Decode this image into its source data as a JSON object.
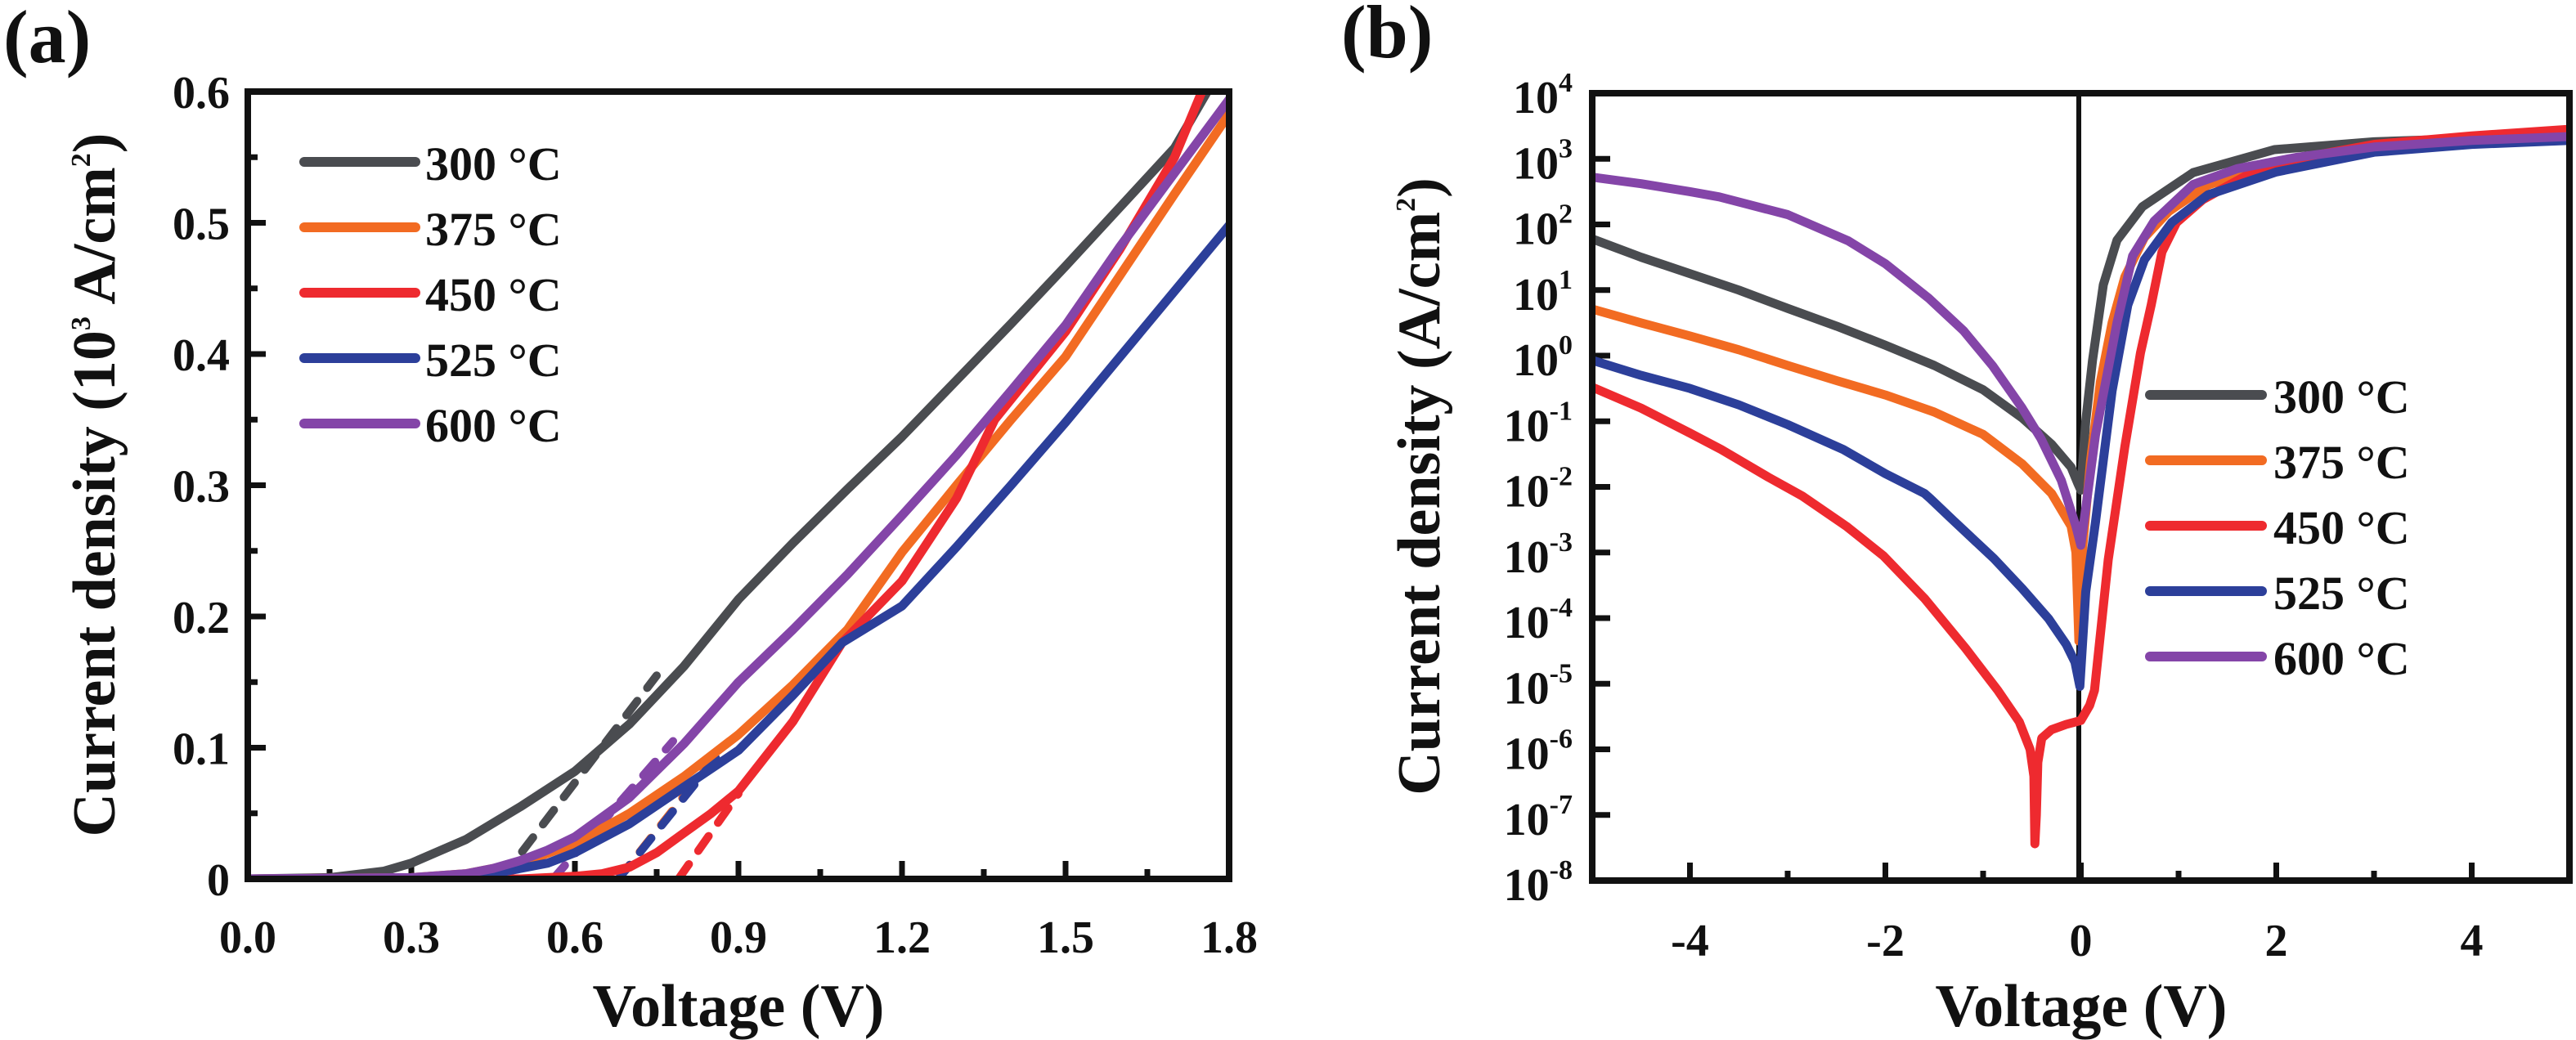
{
  "figure": {
    "panels": [
      "(a)",
      "(b)"
    ]
  },
  "colors": {
    "300": "#4a4c50",
    "375": "#f26b22",
    "450": "#ee2a2f",
    "525": "#2c3f9a",
    "600": "#8445a8",
    "axis": "#111111"
  },
  "chart_data": [
    {
      "panel": "(a)",
      "type": "line",
      "title": "",
      "xlabel": "Voltage (V)",
      "ylabel": "Current density (10^3 A/cm^2)",
      "ylabel_parts": {
        "main": "Current density (10",
        "sup1": "3",
        "mid": " A/cm",
        "sup2": "2",
        "end": ")"
      },
      "xlim": [
        0,
        1.8
      ],
      "ylim": [
        0,
        0.6
      ],
      "xscale": "linear",
      "yscale": "linear",
      "xticks": [
        0.0,
        0.3,
        0.6,
        0.9,
        1.2,
        1.5,
        1.8
      ],
      "xtick_labels": [
        "0.0",
        "0.3",
        "0.6",
        "0.9",
        "1.2",
        "1.5",
        "1.8"
      ],
      "yticks": [
        0,
        0.1,
        0.2,
        0.3,
        0.4,
        0.5,
        0.6
      ],
      "ytick_labels": [
        "0",
        "0.1",
        "0.2",
        "0.3",
        "0.4",
        "0.5",
        "0.6"
      ],
      "grid": false,
      "legend": {
        "position": "top-left",
        "entries": [
          "300 °C",
          "375 °C",
          "450 °C",
          "525 °C",
          "600 °C"
        ]
      },
      "series": [
        {
          "name": "300 °C",
          "key": "300",
          "style": "solid",
          "x": [
            0,
            0.15,
            0.25,
            0.3,
            0.4,
            0.5,
            0.6,
            0.7,
            0.8,
            0.9,
            1.0,
            1.1,
            1.2,
            1.3,
            1.4,
            1.5,
            1.6,
            1.7,
            1.76
          ],
          "y": [
            0,
            0.001,
            0.006,
            0.012,
            0.03,
            0.055,
            0.082,
            0.118,
            0.162,
            0.213,
            0.256,
            0.297,
            0.337,
            0.38,
            0.423,
            0.467,
            0.512,
            0.557,
            0.6
          ]
        },
        {
          "name": "375 °C",
          "key": "375",
          "style": "solid",
          "x": [
            0,
            0.3,
            0.4,
            0.5,
            0.6,
            0.7,
            0.8,
            0.9,
            1.0,
            1.1,
            1.2,
            1.3,
            1.4,
            1.5,
            1.6,
            1.7,
            1.8
          ],
          "y": [
            0,
            0.001,
            0.004,
            0.012,
            0.027,
            0.05,
            0.078,
            0.11,
            0.148,
            0.19,
            0.249,
            0.3,
            0.35,
            0.398,
            0.46,
            0.522,
            0.583
          ]
        },
        {
          "name": "450 °C",
          "key": "450",
          "style": "solid",
          "x": [
            0,
            0.5,
            0.6,
            0.65,
            0.7,
            0.75,
            0.8,
            0.85,
            0.9,
            1.0,
            1.09,
            1.2,
            1.3,
            1.37,
            1.5,
            1.6,
            1.7,
            1.75
          ],
          "y": [
            0,
            0.0,
            0.002,
            0.004,
            0.009,
            0.02,
            0.035,
            0.05,
            0.067,
            0.12,
            0.18,
            0.227,
            0.29,
            0.35,
            0.417,
            0.48,
            0.55,
            0.6
          ]
        },
        {
          "name": "525 °C",
          "key": "525",
          "style": "solid",
          "x": [
            0,
            0.35,
            0.45,
            0.55,
            0.6,
            0.7,
            0.8,
            0.9,
            1.0,
            1.09,
            1.2,
            1.3,
            1.4,
            1.5,
            1.6,
            1.7,
            1.8
          ],
          "y": [
            0,
            0.001,
            0.004,
            0.012,
            0.02,
            0.042,
            0.07,
            0.098,
            0.14,
            0.18,
            0.208,
            0.253,
            0.3,
            0.348,
            0.398,
            0.448,
            0.498
          ]
        },
        {
          "name": "600 °C",
          "key": "600",
          "style": "solid",
          "x": [
            0,
            0.3,
            0.4,
            0.45,
            0.5,
            0.55,
            0.6,
            0.7,
            0.8,
            0.9,
            1.0,
            1.1,
            1.2,
            1.3,
            1.4,
            1.5,
            1.6,
            1.7,
            1.8
          ],
          "y": [
            0,
            0.001,
            0.004,
            0.008,
            0.014,
            0.022,
            0.032,
            0.062,
            0.103,
            0.15,
            0.19,
            0.232,
            0.277,
            0.323,
            0.372,
            0.422,
            0.482,
            0.538,
            0.594
          ]
        },
        {
          "name": "300 °C fit",
          "key": "300",
          "style": "dashed",
          "x": [
            0.465,
            0.75
          ],
          "y": [
            0,
            0.155
          ]
        },
        {
          "name": "375 °C fit",
          "key": "375",
          "style": "dashed",
          "x": [
            0.68,
            0.87
          ],
          "y": [
            0,
            0.1
          ]
        },
        {
          "name": "450 °C fit",
          "key": "450",
          "style": "dashed",
          "x": [
            0.79,
            0.9
          ],
          "y": [
            0,
            0.065
          ]
        },
        {
          "name": "525 °C fit",
          "key": "525",
          "style": "dashed",
          "x": [
            0.68,
            0.87
          ],
          "y": [
            0,
            0.098
          ]
        },
        {
          "name": "600 °C fit",
          "key": "600",
          "style": "dashed",
          "x": [
            0.56,
            0.78
          ],
          "y": [
            0,
            0.105
          ]
        }
      ]
    },
    {
      "panel": "(b)",
      "type": "line",
      "title": "",
      "xlabel": "Voltage (V)",
      "ylabel": "Current density (A/cm^2)",
      "ylabel_parts": {
        "main": "Current density (A/cm",
        "sup": "2",
        "end": ")"
      },
      "xlim": [
        -5,
        5
      ],
      "ylim": [
        1e-08,
        10000.0
      ],
      "xscale": "linear",
      "yscale": "log",
      "xticks": [
        -4,
        -2,
        0,
        2,
        4
      ],
      "xtick_labels": [
        "-4",
        "-2",
        "0",
        "2",
        "4"
      ],
      "yticks_exponents": [
        4,
        3,
        2,
        1,
        0,
        -1,
        -2,
        -3,
        -4,
        -5,
        -6,
        -7,
        -8
      ],
      "ytick_labels": [
        "10^4",
        "10^3",
        "10^2",
        "10^1",
        "10^0",
        "10^-1",
        "10^-2",
        "10^-3",
        "10^-4",
        "10^-5",
        "10^-6",
        "10^-7",
        "10^-8"
      ],
      "reference_line": {
        "x": 0
      },
      "grid": false,
      "legend": {
        "position": "center-right",
        "entries": [
          "300 °C",
          "375 °C",
          "450 °C",
          "525 °C",
          "600 °C"
        ]
      },
      "series_note": "y values given as log10(J)",
      "series": [
        {
          "name": "300 °C",
          "key": "300",
          "x": [
            -5,
            -4.5,
            -4,
            -3.5,
            -3,
            -2.5,
            -2,
            -1.5,
            -1,
            -0.6,
            -0.3,
            -0.1,
            -0.03,
            0.0,
            0.05,
            0.12,
            0.23,
            0.37,
            0.63,
            1.15,
            1.98,
            3,
            4,
            5
          ],
          "log_y": [
            1.78,
            1.5,
            1.25,
            1.0,
            0.72,
            0.45,
            0.16,
            -0.15,
            -0.52,
            -0.95,
            -1.35,
            -1.7,
            -1.95,
            -2.05,
            -1.0,
            -0.07,
            1.08,
            1.76,
            2.27,
            2.79,
            3.14,
            3.26,
            3.31,
            3.34
          ]
        },
        {
          "name": "375 °C",
          "key": "375",
          "x": [
            -5,
            -4.5,
            -4,
            -3.5,
            -3,
            -2.5,
            -2,
            -1.5,
            -1,
            -0.6,
            -0.3,
            -0.1,
            -0.05,
            -0.02,
            0.02,
            0.1,
            0.2,
            0.32,
            0.45,
            0.65,
            0.9,
            1.3,
            2,
            3,
            4,
            5
          ],
          "log_y": [
            0.71,
            0.5,
            0.3,
            0.09,
            -0.15,
            -0.38,
            -0.6,
            -0.86,
            -1.2,
            -1.65,
            -2.1,
            -2.6,
            -3.0,
            -4.35,
            -2.9,
            -1.6,
            -0.4,
            0.5,
            1.2,
            1.8,
            2.2,
            2.6,
            2.95,
            3.2,
            3.28,
            3.32
          ]
        },
        {
          "name": "450 °C",
          "key": "450",
          "x": [
            -5,
            -4.5,
            -4,
            -3.68,
            -3.2,
            -2.85,
            -2.4,
            -2.02,
            -1.6,
            -1.18,
            -0.85,
            -0.63,
            -0.52,
            -0.48,
            -0.47,
            -0.455,
            -0.44,
            -0.4,
            -0.3,
            -0.15,
            0.0,
            0.09,
            0.14,
            0.28,
            0.45,
            0.61,
            0.72,
            0.83,
            0.98,
            1.25,
            1.7,
            2.2,
            3,
            4,
            5
          ],
          "log_y": [
            -0.48,
            -0.8,
            -1.18,
            -1.43,
            -1.85,
            -2.14,
            -2.6,
            -3.05,
            -3.7,
            -4.46,
            -5.1,
            -5.58,
            -6.0,
            -6.41,
            -7.44,
            -7.0,
            -6.2,
            -5.83,
            -5.7,
            -5.62,
            -5.56,
            -5.33,
            -5.1,
            -3.11,
            -1.39,
            0.04,
            0.77,
            1.58,
            2.03,
            2.38,
            2.75,
            3.0,
            3.22,
            3.35,
            3.45
          ]
        },
        {
          "name": "525 °C",
          "key": "525",
          "x": [
            -5,
            -4.5,
            -4,
            -3.5,
            -3,
            -2.43,
            -2,
            -1.6,
            -1.54,
            -1.3,
            -0.89,
            -0.6,
            -0.33,
            -0.15,
            -0.06,
            -0.01,
            0.05,
            0.15,
            0.32,
            0.48,
            0.65,
            0.93,
            1.3,
            2,
            3,
            4,
            5
          ],
          "log_y": [
            -0.07,
            -0.3,
            -0.5,
            -0.75,
            -1.05,
            -1.43,
            -1.8,
            -2.1,
            -2.18,
            -2.52,
            -3.09,
            -3.55,
            -4.01,
            -4.4,
            -4.67,
            -5.04,
            -3.6,
            -2.54,
            -0.54,
            0.77,
            1.46,
            2.03,
            2.45,
            2.8,
            3.1,
            3.22,
            3.28
          ]
        },
        {
          "name": "600 °C",
          "key": "600",
          "x": [
            -5,
            -4.5,
            -4,
            -3.7,
            -3,
            -2.38,
            -2,
            -1.56,
            -1.2,
            -0.9,
            -0.6,
            -0.41,
            -0.2,
            -0.05,
            0.0,
            0.15,
            0.37,
            0.53,
            0.75,
            1.15,
            1.6,
            2.2,
            3,
            4,
            5
          ],
          "log_y": [
            2.72,
            2.62,
            2.5,
            2.42,
            2.15,
            1.75,
            1.4,
            0.88,
            0.38,
            -0.16,
            -0.8,
            -1.26,
            -1.9,
            -2.6,
            -2.89,
            -1.21,
            0.5,
            1.52,
            2.05,
            2.61,
            2.85,
            3.02,
            3.18,
            3.28,
            3.34
          ]
        }
      ]
    }
  ]
}
